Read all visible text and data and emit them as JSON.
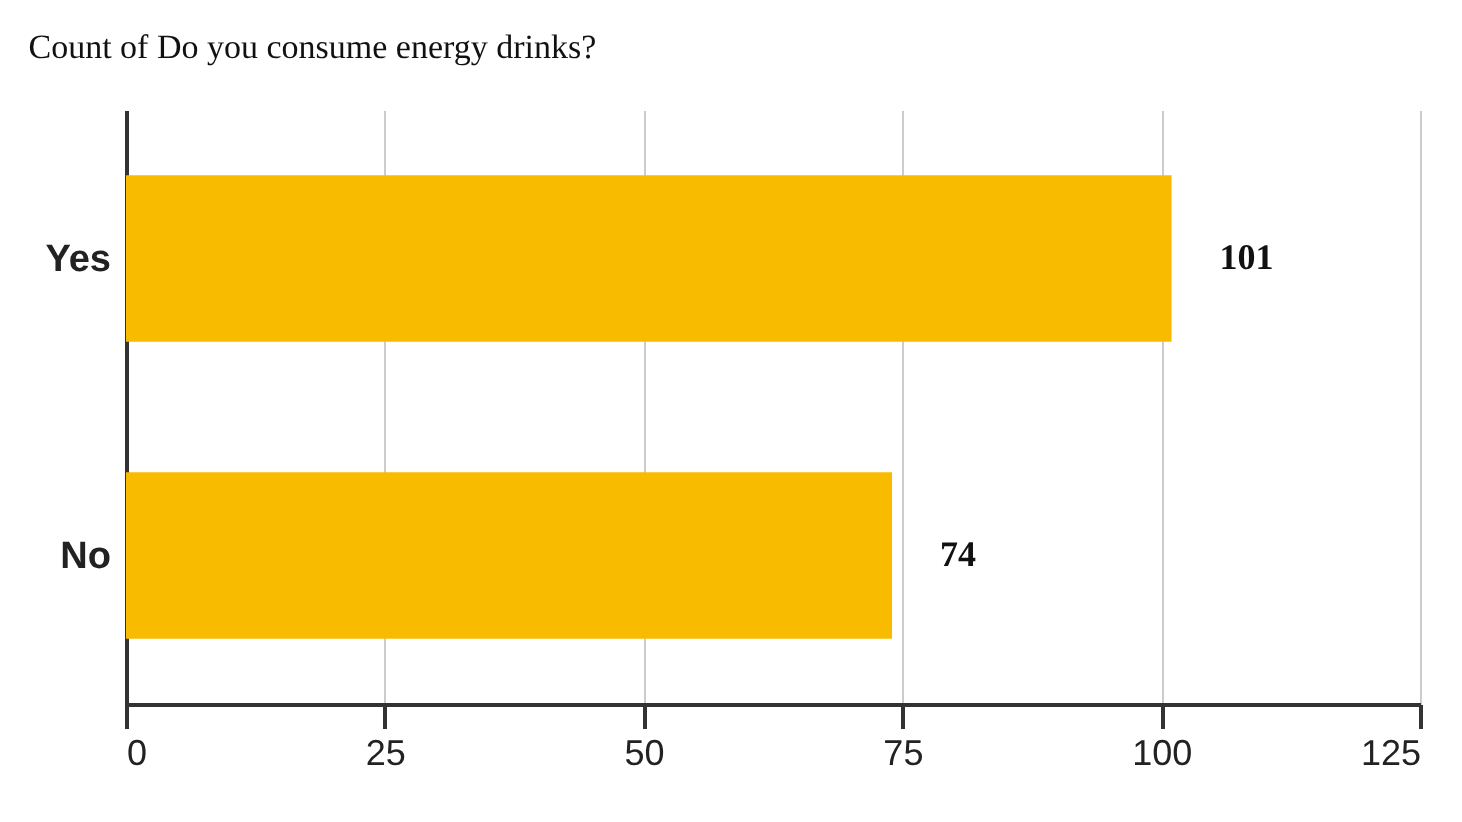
{
  "chart_data": {
    "type": "bar",
    "orientation": "horizontal",
    "title": "Count of Do you consume energy drinks?",
    "categories": [
      "Yes",
      "No"
    ],
    "values": [
      101,
      74
    ],
    "color": "#f9bb00",
    "xlim": [
      0,
      125
    ],
    "xticks": [
      0,
      25,
      50,
      75,
      100,
      125
    ],
    "grid": "x",
    "data_labels": true
  }
}
